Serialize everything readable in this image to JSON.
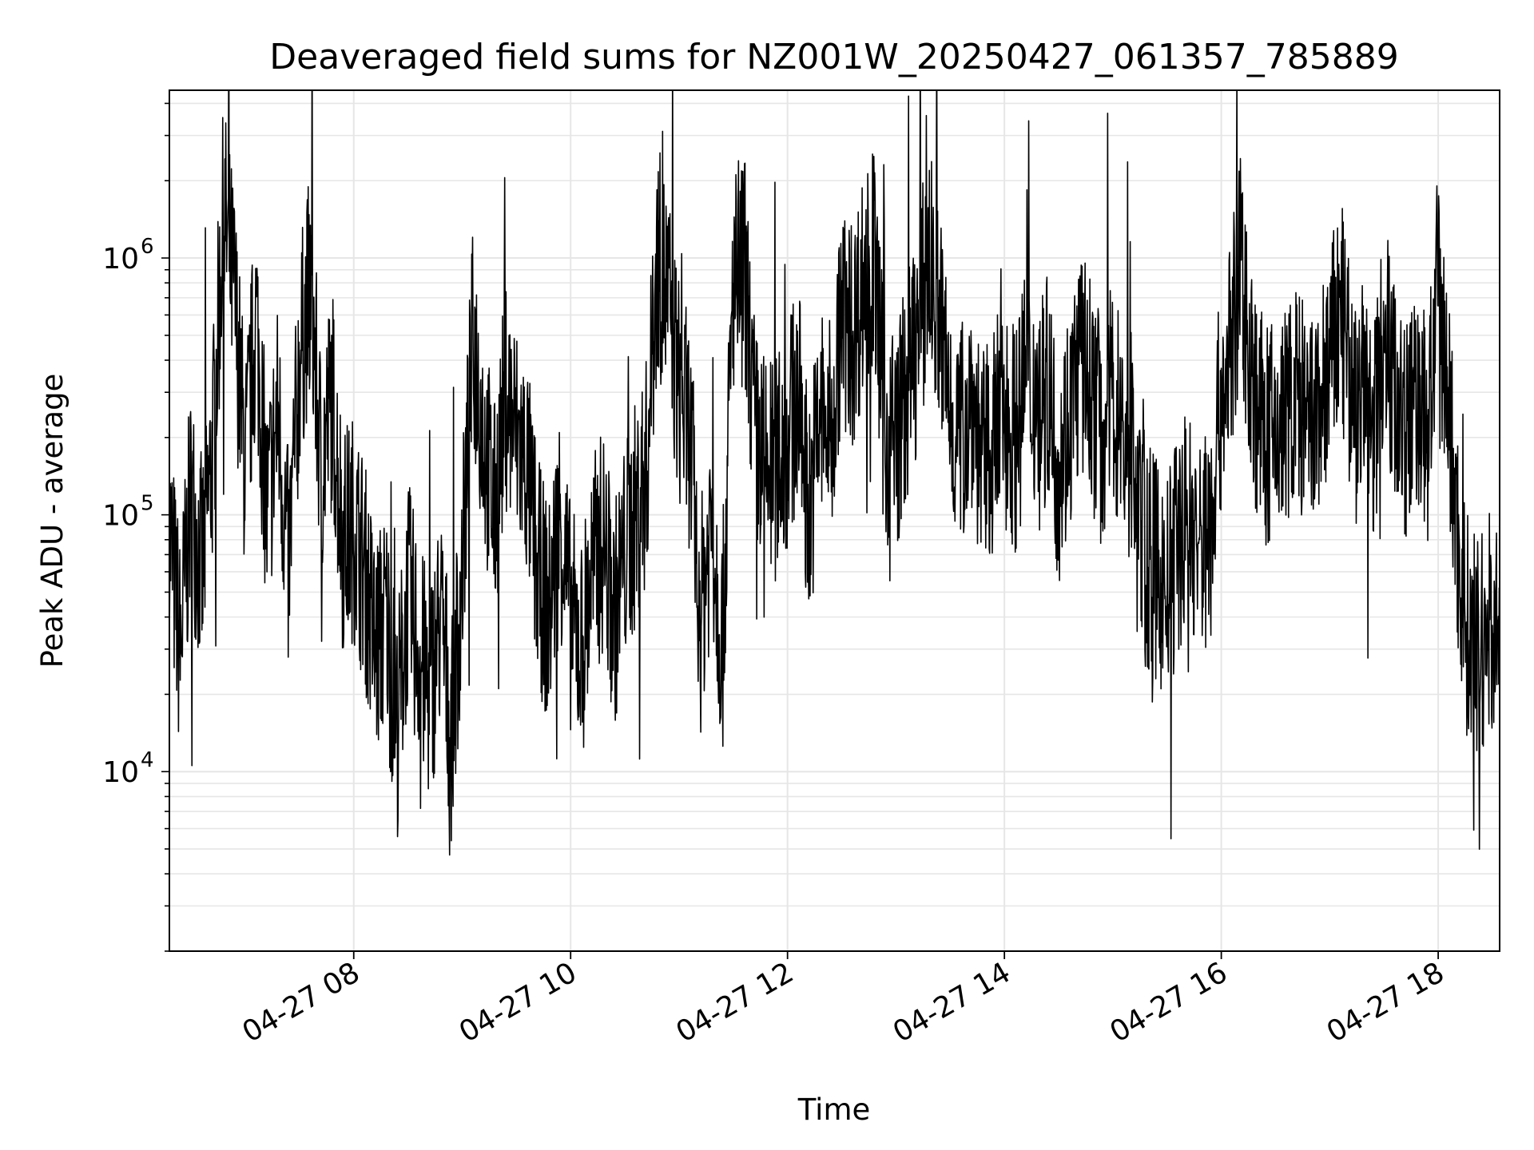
{
  "chart_data": {
    "type": "line",
    "title": "Deaveraged field sums for NZ001W_20250427_061357_785889",
    "xlabel": "Time",
    "ylabel": "Peak ADU - average",
    "y_scale": "log",
    "xlim": [
      "2025-04-27T06:18",
      "2025-04-27T18:34"
    ],
    "ylim": [
      2000,
      4500000
    ],
    "grid": true,
    "line_color": "#000000",
    "grid_color": "#e6e6e6",
    "x_ticks": [
      {
        "value": "2025-04-27T08:00",
        "label": "04-27 08"
      },
      {
        "value": "2025-04-27T10:00",
        "label": "04-27 10"
      },
      {
        "value": "2025-04-27T12:00",
        "label": "04-27 12"
      },
      {
        "value": "2025-04-27T14:00",
        "label": "04-27 14"
      },
      {
        "value": "2025-04-27T16:00",
        "label": "04-27 16"
      },
      {
        "value": "2025-04-27T18:00",
        "label": "04-27 18"
      }
    ],
    "y_ticks": [
      {
        "value": 10000,
        "base": "10",
        "exp": "4"
      },
      {
        "value": 100000,
        "base": "10",
        "exp": "5"
      },
      {
        "value": 1000000,
        "base": "10",
        "exp": "6"
      }
    ],
    "series": [
      {
        "x": [
          "2025-04-27T06:18",
          "2025-04-27T06:24",
          "2025-04-27T06:30",
          "2025-04-27T06:36",
          "2025-04-27T06:42",
          "2025-04-27T06:48",
          "2025-04-27T06:54",
          "2025-04-27T07:00",
          "2025-04-27T07:06",
          "2025-04-27T07:12",
          "2025-04-27T07:18",
          "2025-04-27T07:24",
          "2025-04-27T07:30",
          "2025-04-27T07:36",
          "2025-04-27T07:42",
          "2025-04-27T07:48",
          "2025-04-27T07:54",
          "2025-04-27T08:00",
          "2025-04-27T08:06",
          "2025-04-27T08:12",
          "2025-04-27T08:18",
          "2025-04-27T08:24",
          "2025-04-27T08:30",
          "2025-04-27T08:36",
          "2025-04-27T08:42",
          "2025-04-27T08:48",
          "2025-04-27T08:54",
          "2025-04-27T09:00",
          "2025-04-27T09:06",
          "2025-04-27T09:12",
          "2025-04-27T09:18",
          "2025-04-27T09:24",
          "2025-04-27T09:30",
          "2025-04-27T09:36",
          "2025-04-27T09:42",
          "2025-04-27T09:48",
          "2025-04-27T09:54",
          "2025-04-27T10:00",
          "2025-04-27T10:06",
          "2025-04-27T10:12",
          "2025-04-27T10:18",
          "2025-04-27T10:24",
          "2025-04-27T10:30",
          "2025-04-27T10:36",
          "2025-04-27T10:42",
          "2025-04-27T10:48",
          "2025-04-27T10:54",
          "2025-04-27T11:00",
          "2025-04-27T11:06",
          "2025-04-27T11:12",
          "2025-04-27T11:18",
          "2025-04-27T11:24",
          "2025-04-27T11:30",
          "2025-04-27T11:36",
          "2025-04-27T11:42",
          "2025-04-27T11:48",
          "2025-04-27T11:54",
          "2025-04-27T12:00",
          "2025-04-27T12:06",
          "2025-04-27T12:12",
          "2025-04-27T12:18",
          "2025-04-27T12:24",
          "2025-04-27T12:30",
          "2025-04-27T12:36",
          "2025-04-27T12:42",
          "2025-04-27T12:48",
          "2025-04-27T12:54",
          "2025-04-27T13:00",
          "2025-04-27T13:06",
          "2025-04-27T13:12",
          "2025-04-27T13:18",
          "2025-04-27T13:24",
          "2025-04-27T13:30",
          "2025-04-27T13:36",
          "2025-04-27T13:42",
          "2025-04-27T13:48",
          "2025-04-27T13:54",
          "2025-04-27T14:00",
          "2025-04-27T14:06",
          "2025-04-27T14:12",
          "2025-04-27T14:18",
          "2025-04-27T14:24",
          "2025-04-27T14:30",
          "2025-04-27T14:36",
          "2025-04-27T14:42",
          "2025-04-27T14:48",
          "2025-04-27T14:54",
          "2025-04-27T15:00",
          "2025-04-27T15:06",
          "2025-04-27T15:12",
          "2025-04-27T15:18",
          "2025-04-27T15:24",
          "2025-04-27T15:30",
          "2025-04-27T15:36",
          "2025-04-27T15:42",
          "2025-04-27T15:48",
          "2025-04-27T15:54",
          "2025-04-27T16:00",
          "2025-04-27T16:06",
          "2025-04-27T16:12",
          "2025-04-27T16:18",
          "2025-04-27T16:24",
          "2025-04-27T16:30",
          "2025-04-27T16:36",
          "2025-04-27T16:42",
          "2025-04-27T16:48",
          "2025-04-27T16:54",
          "2025-04-27T17:00",
          "2025-04-27T17:06",
          "2025-04-27T17:12",
          "2025-04-27T17:18",
          "2025-04-27T17:24",
          "2025-04-27T17:30",
          "2025-04-27T17:36",
          "2025-04-27T17:42",
          "2025-04-27T17:48",
          "2025-04-27T17:54",
          "2025-04-27T18:00",
          "2025-04-27T18:06",
          "2025-04-27T18:12",
          "2025-04-27T18:18",
          "2025-04-27T18:24",
          "2025-04-27T18:30",
          "2025-04-27T18:34"
        ],
        "y": [
          90000,
          30000,
          120000,
          60000,
          180000,
          1500000,
          700000,
          150000,
          600000,
          100000,
          250000,
          60000,
          400000,
          800000,
          150000,
          300000,
          80000,
          90000,
          60000,
          30000,
          40000,
          15000,
          50000,
          30000,
          20000,
          40000,
          15000,
          60000,
          500000,
          200000,
          100000,
          300000,
          200000,
          150000,
          60000,
          40000,
          100000,
          40000,
          30000,
          60000,
          80000,
          40000,
          70000,
          100000,
          150000,
          1000000,
          700000,
          300000,
          200000,
          40000,
          100000,
          30000,
          800000,
          1000000,
          200000,
          150000,
          150000,
          200000,
          300000,
          100000,
          250000,
          200000,
          600000,
          500000,
          800000,
          1000000,
          200000,
          200000,
          300000,
          500000,
          1000000,
          600000,
          250000,
          200000,
          300000,
          150000,
          200000,
          250000,
          200000,
          300000,
          300000,
          300000,
          150000,
          250000,
          400000,
          300000,
          200000,
          300000,
          200000,
          150000,
          70000,
          60000,
          50000,
          80000,
          100000,
          70000,
          100000,
          300000,
          500000,
          800000,
          300000,
          200000,
          200000,
          250000,
          300000,
          200000,
          250000,
          400000,
          600000,
          300000,
          300000,
          200000,
          600000,
          300000,
          200000,
          300000,
          200000,
          800000,
          250000,
          60000,
          30000,
          30000,
          40000,
          30000
        ]
      }
    ]
  }
}
